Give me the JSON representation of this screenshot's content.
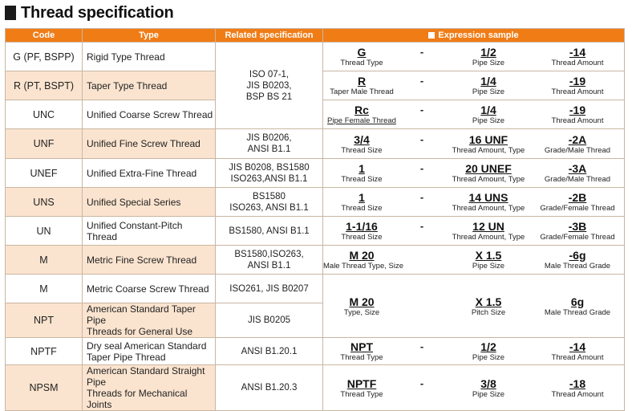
{
  "title": "Thread specification",
  "headers": {
    "code": "Code",
    "type": "Type",
    "related": "Related specification",
    "expression": "Expression sample"
  },
  "rows": [
    {
      "code": "G (PF, BSPP)",
      "type": "Rigid Type Thread"
    },
    {
      "code": "R (PT, BSPT)",
      "type": "Taper Type Thread"
    },
    {
      "code": "UNC",
      "type": "Unified Coarse Screw Thread"
    },
    {
      "code": "UNF",
      "type": "Unified Fine Screw Thread",
      "related": "JIS B0206,\nANSI B1.1"
    },
    {
      "code": "UNEF",
      "type": "Unified Extra-Fine Thread",
      "related": "JIS B0208, BS1580\nISO263,ANSI B1.1"
    },
    {
      "code": "UNS",
      "type": "Unified Special Series",
      "related": "BS1580\nISO263, ANSI B1.1"
    },
    {
      "code": "UN",
      "type": "Unified Constant-Pitch Thread",
      "related": "BS1580, ANSI B1.1"
    },
    {
      "code": "M",
      "type": "Metric Fine Screw Thread",
      "related": "BS1580,ISO263,\nANSI B1.1"
    },
    {
      "code": "M",
      "type": "Metric Coarse Screw Thread",
      "related": "ISO261, JIS B0207"
    },
    {
      "code": "NPT",
      "type": "American Standard Taper Pipe\nThreads for General Use",
      "related": "JIS B0205"
    },
    {
      "code": "NPTF",
      "type": "Dry seal American Standard\nTaper Pipe Thread",
      "related": "ANSI B1.20.1"
    },
    {
      "code": "NPSM",
      "type": "American Standard Straight Pipe\nThreads for Mechanical Joints",
      "related": "ANSI B1.20.3"
    }
  ],
  "related_group1": "ISO 07-1,\nJIS B0203,\nBSP BS 21",
  "expressions": [
    {
      "v1": "G",
      "d1": "Thread Type",
      "sep": "-",
      "v2": "1/2",
      "d2": "Pipe Size",
      "v3": "-14",
      "d3": "Thread Amount"
    },
    {
      "v1": "R",
      "d1": "Taper Male Thread",
      "sep": "-",
      "v2": "1/4",
      "d2": "Pipe Size",
      "v3": "-19",
      "d3": "Thread Amount"
    },
    {
      "v1": "Rc",
      "d1": "Pipe Female Thread",
      "sep": "-",
      "v2": "1/4",
      "d2": "Pipe Size",
      "v3": "-19",
      "d3": "Thread Amount"
    },
    {
      "v1": "3/4",
      "d1": "Thread Size",
      "sep": "-",
      "v2": "16 UNF",
      "d2": "Thread Amount, Type",
      "v3": "-2A",
      "d3": "Grade/Male Thread"
    },
    {
      "v1": "1",
      "d1": "Thread Size",
      "sep": "-",
      "v2": "20 UNEF",
      "d2": "Thread Amount, Type",
      "v3": "-3A",
      "d3": "Grade/Male Thread"
    },
    {
      "v1": "1",
      "d1": "Thread Size",
      "sep": "-",
      "v2": "14 UNS",
      "d2": "Thread Amount, Type",
      "v3": "-2B",
      "d3": "Grade/Female Thread"
    },
    {
      "v1": "1-1/16",
      "d1": "Thread Size",
      "sep": "-",
      "v2": "12 UN",
      "d2": "Thread Amount, Type",
      "v3": "-3B",
      "d3": "Grade/Female Thread"
    },
    {
      "v1": "M 20",
      "d1": "Male Thread Type, Size",
      "sep": "",
      "v2": "X 1.5",
      "d2": "Pipe Size",
      "v3": "-6g",
      "d3": "Male Thread Grade"
    },
    {
      "v1": "M 20",
      "d1": "Type, Size",
      "sep": "",
      "v2": "X 1.5",
      "d2": "Pitch Size",
      "v3": "6g",
      "d3": "Male Thread Grade"
    },
    {
      "v1": "NPT",
      "d1": "Thread Type",
      "sep": "-",
      "v2": "1/2",
      "d2": "Pipe Size",
      "v3": "-14",
      "d3": "Thread Amount"
    },
    {
      "v1": "NPTF",
      "d1": "Thread Type",
      "sep": "-",
      "v2": "3/8",
      "d2": "Pipe Size",
      "v3": "-18",
      "d3": "Thread Amount"
    }
  ]
}
